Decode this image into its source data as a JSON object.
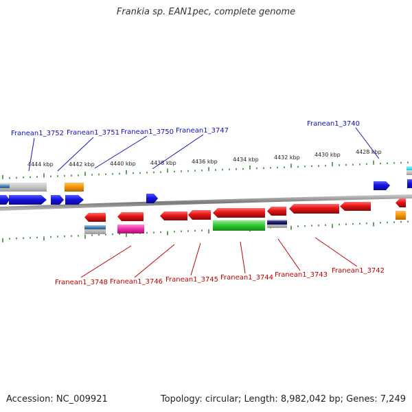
{
  "title": "Frankia sp. EAN1pec, complete genome",
  "footer": {
    "accession": "Accession: NC_009921",
    "topology": "Topology: circular; Length: 8,982,042 bp; Genes: 7,249"
  },
  "ticks": [
    "4444 kbp",
    "4442 kbp",
    "4440 kbp",
    "4438 kbp",
    "4436 kbp",
    "4434 kbp",
    "4432 kbp",
    "4430 kbp",
    "4428 kbp"
  ],
  "gene_labels_top": [
    "Franean1_3752",
    "Franean1_3751",
    "Franean1_3750",
    "Franean1_3747",
    "Franean1_3740"
  ],
  "gene_labels_bottom": [
    "Franean1_3748",
    "Franean1_3746",
    "Franean1_3745",
    "Franean1_3744",
    "Franean1_3743",
    "Franean1_3742"
  ],
  "colors": {
    "forward_label": "#1010c0",
    "reverse_label": "#c00000",
    "forward_gene": "#1e1ee6",
    "reverse_gene": "#e61e1e",
    "tick": "#1a7a1a"
  }
}
